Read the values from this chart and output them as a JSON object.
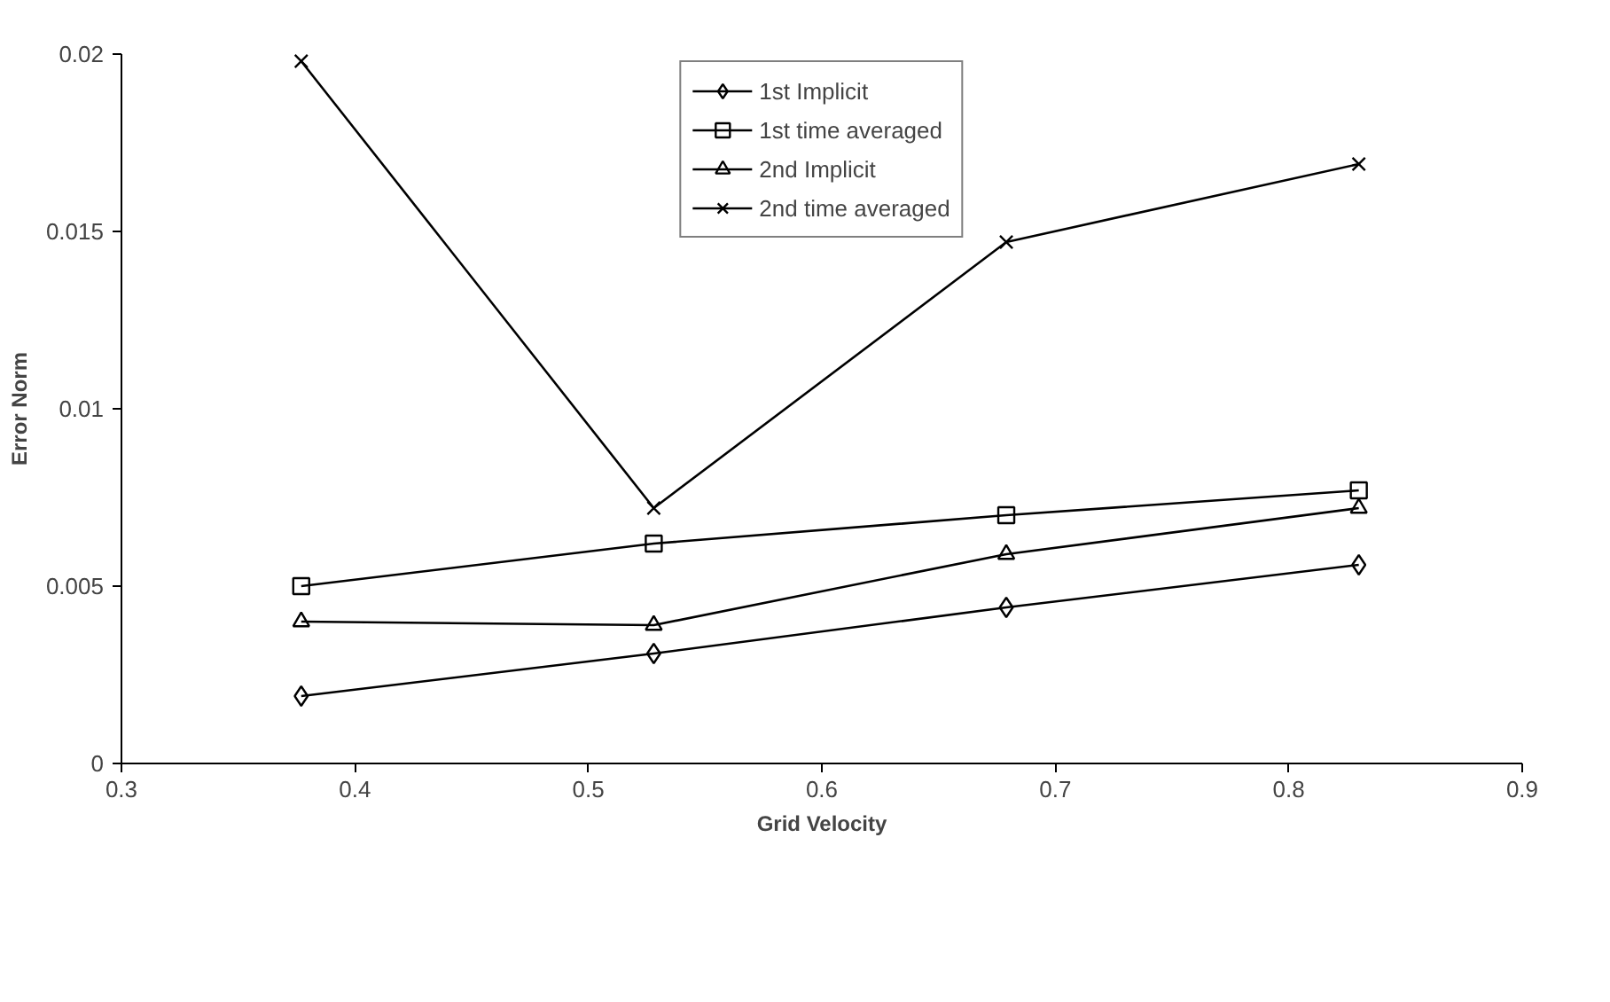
{
  "chart_data": {
    "type": "line",
    "xlabel": "Grid Velocity",
    "ylabel": "Error Norm",
    "x": [
      0.377,
      0.528,
      0.679,
      0.83
    ],
    "series": [
      {
        "name": "1st Implicit",
        "color": "#000000",
        "marker": "diamond",
        "values": [
          0.0019,
          0.0031,
          0.0044,
          0.0056
        ]
      },
      {
        "name": "1st time averaged",
        "color": "#000000",
        "marker": "square",
        "values": [
          0.005,
          0.0062,
          0.007,
          0.0077
        ]
      },
      {
        "name": "2nd Implicit",
        "color": "#000000",
        "marker": "triangle",
        "values": [
          0.004,
          0.0039,
          0.0059,
          0.0072
        ]
      },
      {
        "name": "2nd time averaged",
        "color": "#000000",
        "marker": "x",
        "values": [
          0.0198,
          0.0072,
          0.0147,
          0.0169
        ]
      }
    ],
    "xlim": [
      0.3,
      0.9
    ],
    "xticks": [
      0.3,
      0.4,
      0.5,
      0.6,
      0.7,
      0.8,
      0.9
    ],
    "ylim": [
      0,
      0.02
    ],
    "yticks": [
      0,
      0.005,
      0.01,
      0.015,
      0.02
    ],
    "grid": false,
    "legend": "top",
    "line_style": "solid"
  }
}
